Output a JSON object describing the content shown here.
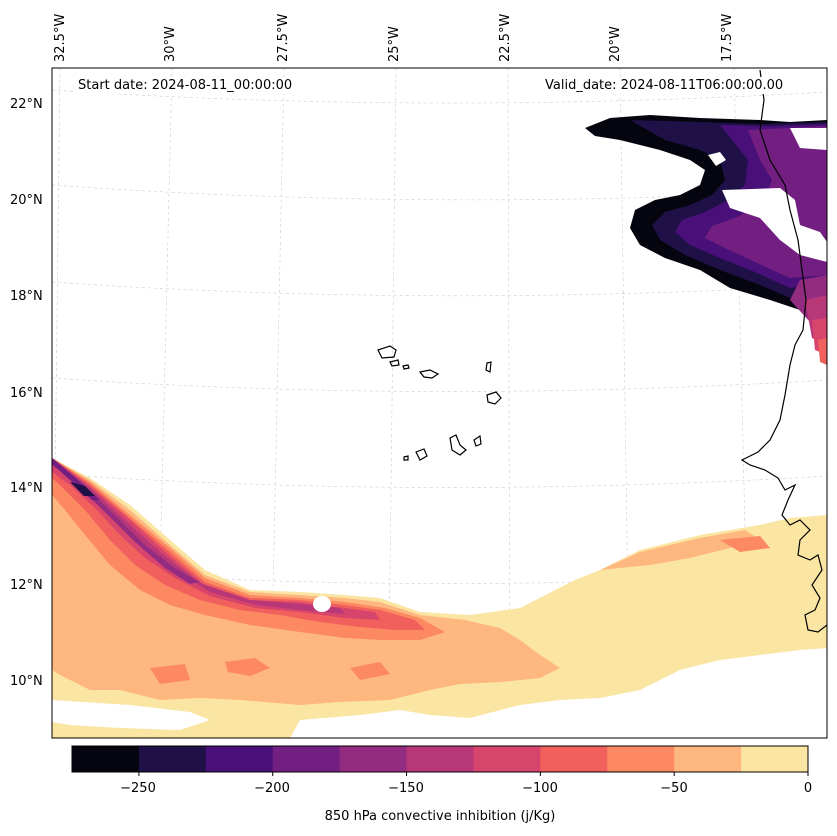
{
  "map": {
    "start_date": "Start date: 2024-08-11_00:00:00",
    "valid_date": "Valid_date: 2024-08-11T06:00:00.00",
    "lon_labels": [
      "32.5°W",
      "30°W",
      "27.5°W",
      "25°W",
      "22.5°W",
      "20°W",
      "17.5°W"
    ],
    "lat_labels": [
      "22°N",
      "20°N",
      "18°N",
      "16°N",
      "14°N",
      "12°N",
      "10°N"
    ]
  },
  "colorbar": {
    "title": "850 hPa convective inhibition (j/Kg)",
    "tick_labels": [
      "−250",
      "−200",
      "−150",
      "−100",
      "−50",
      "0"
    ],
    "levels": [
      -275,
      -250,
      -225,
      -200,
      -175,
      -150,
      -125,
      -100,
      -75,
      -50,
      -25,
      0
    ],
    "colors": [
      "#05050f",
      "#1f1147",
      "#4a1079",
      "#721f81",
      "#932b80",
      "#b73779",
      "#d8456c",
      "#f1605d",
      "#fc8961",
      "#feb77e",
      "#fbe5a3"
    ]
  }
}
